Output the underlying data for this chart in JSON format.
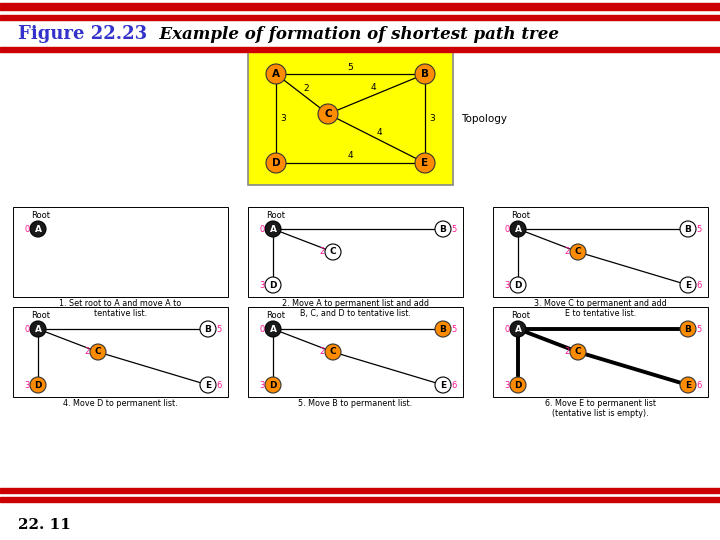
{
  "title_bold": "Figure 22.23",
  "title_italic": "  Example of formation of shortest path tree",
  "footer_text": "22. 11",
  "red_bar_color": "#cc0000",
  "title_color_bold": "#3333cc",
  "bg_color": "#ffffff",
  "yellow_bg": "#ffff00",
  "orange_node": "#ff8c00",
  "black_node": "#1a1a1a",
  "white_node": "#ffffff",
  "pink_label": "#ff1493",
  "topology_edges": [
    [
      "A",
      "B",
      5
    ],
    [
      "A",
      "C",
      2
    ],
    [
      "A",
      "D",
      3
    ],
    [
      "C",
      "B",
      4
    ],
    [
      "C",
      "E",
      4
    ],
    [
      "B",
      "E",
      3
    ],
    [
      "D",
      "E",
      4
    ]
  ],
  "step_captions": [
    "1. Set root to A and move A to\ntentative list.",
    "2. Move A to permanent list and add\nB, C, and D to tentative list.",
    "3. Move C to permanent and add\nE to tentative list.",
    "4. Move D to permanent list.",
    "5. Move B to permanent list.",
    "6. Move E to permanent list\n(tentative list is empty)."
  ],
  "steps": [
    {
      "nodes": {
        "A": "black",
        "B": null,
        "C": null,
        "D": null,
        "E": null
      },
      "edges": [],
      "bold_edges": [],
      "labels": {
        "A": "0",
        "B": null,
        "C": null,
        "D": null,
        "E": null
      }
    },
    {
      "nodes": {
        "A": "black",
        "B": "white",
        "C": "white",
        "D": "white",
        "E": null
      },
      "edges": [
        [
          "A",
          "B"
        ],
        [
          "A",
          "C"
        ],
        [
          "A",
          "D"
        ]
      ],
      "bold_edges": [],
      "labels": {
        "A": "0",
        "B": "5",
        "C": "2",
        "D": "3",
        "E": null
      }
    },
    {
      "nodes": {
        "A": "black",
        "B": "white",
        "C": "orange",
        "D": "white",
        "E": "white"
      },
      "edges": [
        [
          "A",
          "B"
        ],
        [
          "A",
          "C"
        ],
        [
          "A",
          "D"
        ],
        [
          "C",
          "E"
        ]
      ],
      "bold_edges": [],
      "labels": {
        "A": "0",
        "B": "5",
        "C": "2",
        "D": "3",
        "E": "6"
      }
    },
    {
      "nodes": {
        "A": "black",
        "B": "white",
        "C": "orange",
        "D": "orange",
        "E": "white"
      },
      "edges": [
        [
          "A",
          "B"
        ],
        [
          "A",
          "C"
        ],
        [
          "A",
          "D"
        ],
        [
          "C",
          "E"
        ]
      ],
      "bold_edges": [],
      "labels": {
        "A": "0",
        "B": "5",
        "C": "2",
        "D": "3",
        "E": "6"
      }
    },
    {
      "nodes": {
        "A": "black",
        "B": "orange",
        "C": "orange",
        "D": "orange",
        "E": "white"
      },
      "edges": [
        [
          "A",
          "B"
        ],
        [
          "A",
          "C"
        ],
        [
          "A",
          "D"
        ],
        [
          "C",
          "E"
        ]
      ],
      "bold_edges": [],
      "labels": {
        "A": "0",
        "B": "5",
        "C": "2",
        "D": "3",
        "E": "6"
      }
    },
    {
      "nodes": {
        "A": "black",
        "B": "orange",
        "C": "orange",
        "D": "orange",
        "E": "orange"
      },
      "edges": [
        [
          "A",
          "B"
        ],
        [
          "A",
          "C"
        ],
        [
          "A",
          "D"
        ],
        [
          "C",
          "E"
        ]
      ],
      "bold_edges": [
        [
          "A",
          "B"
        ],
        [
          "A",
          "C"
        ],
        [
          "A",
          "D"
        ],
        [
          "C",
          "E"
        ]
      ],
      "labels": {
        "A": "0",
        "B": "5",
        "C": "2",
        "D": "3",
        "E": "6"
      }
    }
  ]
}
